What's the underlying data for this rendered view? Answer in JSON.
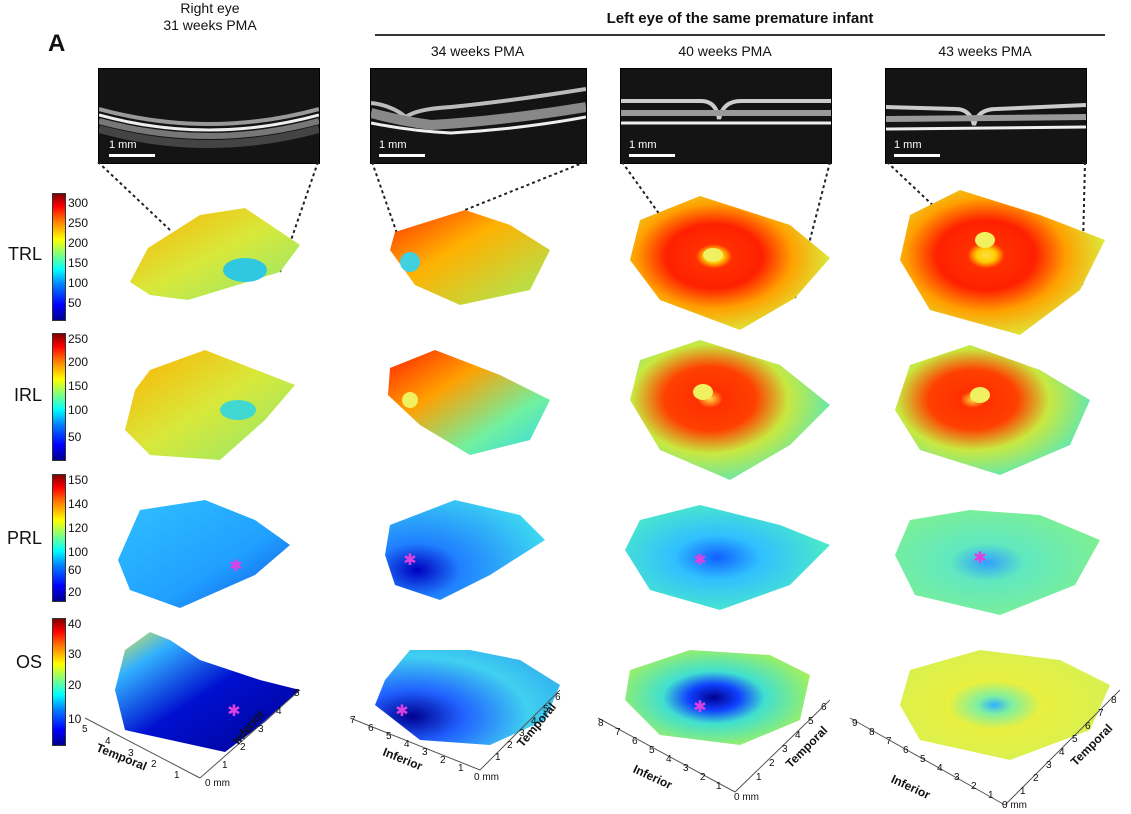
{
  "panel_letter": "A",
  "group_title": "Left eye of the same premature infant",
  "columns": [
    {
      "title1": "Right eye",
      "title2": "31 weeks PMA"
    },
    {
      "title1": "",
      "title2": "34 weeks PMA"
    },
    {
      "title1": "",
      "title2": "40 weeks PMA"
    },
    {
      "title1": "",
      "title2": "43 weeks PMA"
    }
  ],
  "scale_bar_label": "1 mm",
  "rows": [
    {
      "label": "TRL",
      "ticks": [
        "300",
        "250",
        "200",
        "150",
        "100",
        "50"
      ]
    },
    {
      "label": "IRL",
      "ticks": [
        "250",
        "200",
        "150",
        "100",
        "50"
      ]
    },
    {
      "label": "PRL",
      "ticks": [
        "150",
        "140",
        "120",
        "100",
        "60",
        "20"
      ]
    },
    {
      "label": "OS",
      "ticks": [
        "40",
        "30",
        "20",
        "10"
      ]
    }
  ],
  "axes": {
    "col1": {
      "left_label": "Temporal",
      "right_label": "Inferior",
      "left_ticks": [
        "5",
        "4",
        "3",
        "2",
        "1"
      ],
      "right_ticks": [
        "1",
        "2",
        "3",
        "4",
        "5"
      ],
      "origin": "0 mm"
    },
    "col2": {
      "left_label": "Inferior",
      "right_label": "Temporal",
      "left_ticks": [
        "7",
        "6",
        "5",
        "4",
        "3",
        "2",
        "1"
      ],
      "right_ticks": [
        "1",
        "2",
        "3",
        "4",
        "5",
        "6"
      ],
      "origin": "0 mm"
    },
    "col3": {
      "left_label": "Inferior",
      "right_label": "Temporal",
      "left_ticks": [
        "8",
        "7",
        "6",
        "5",
        "4",
        "3",
        "2",
        "1"
      ],
      "right_ticks": [
        "1",
        "2",
        "3",
        "4",
        "5",
        "6"
      ],
      "origin": "0 mm"
    },
    "col4": {
      "left_label": "Inferior",
      "right_label": "Temporal",
      "left_ticks": [
        "9",
        "8",
        "7",
        "6",
        "5",
        "4",
        "3",
        "2",
        "1"
      ],
      "right_ticks": [
        "1",
        "2",
        "3",
        "4",
        "5",
        "6",
        "7",
        "8"
      ],
      "origin": "0 mm"
    }
  },
  "marker_color": "#e040e0"
}
